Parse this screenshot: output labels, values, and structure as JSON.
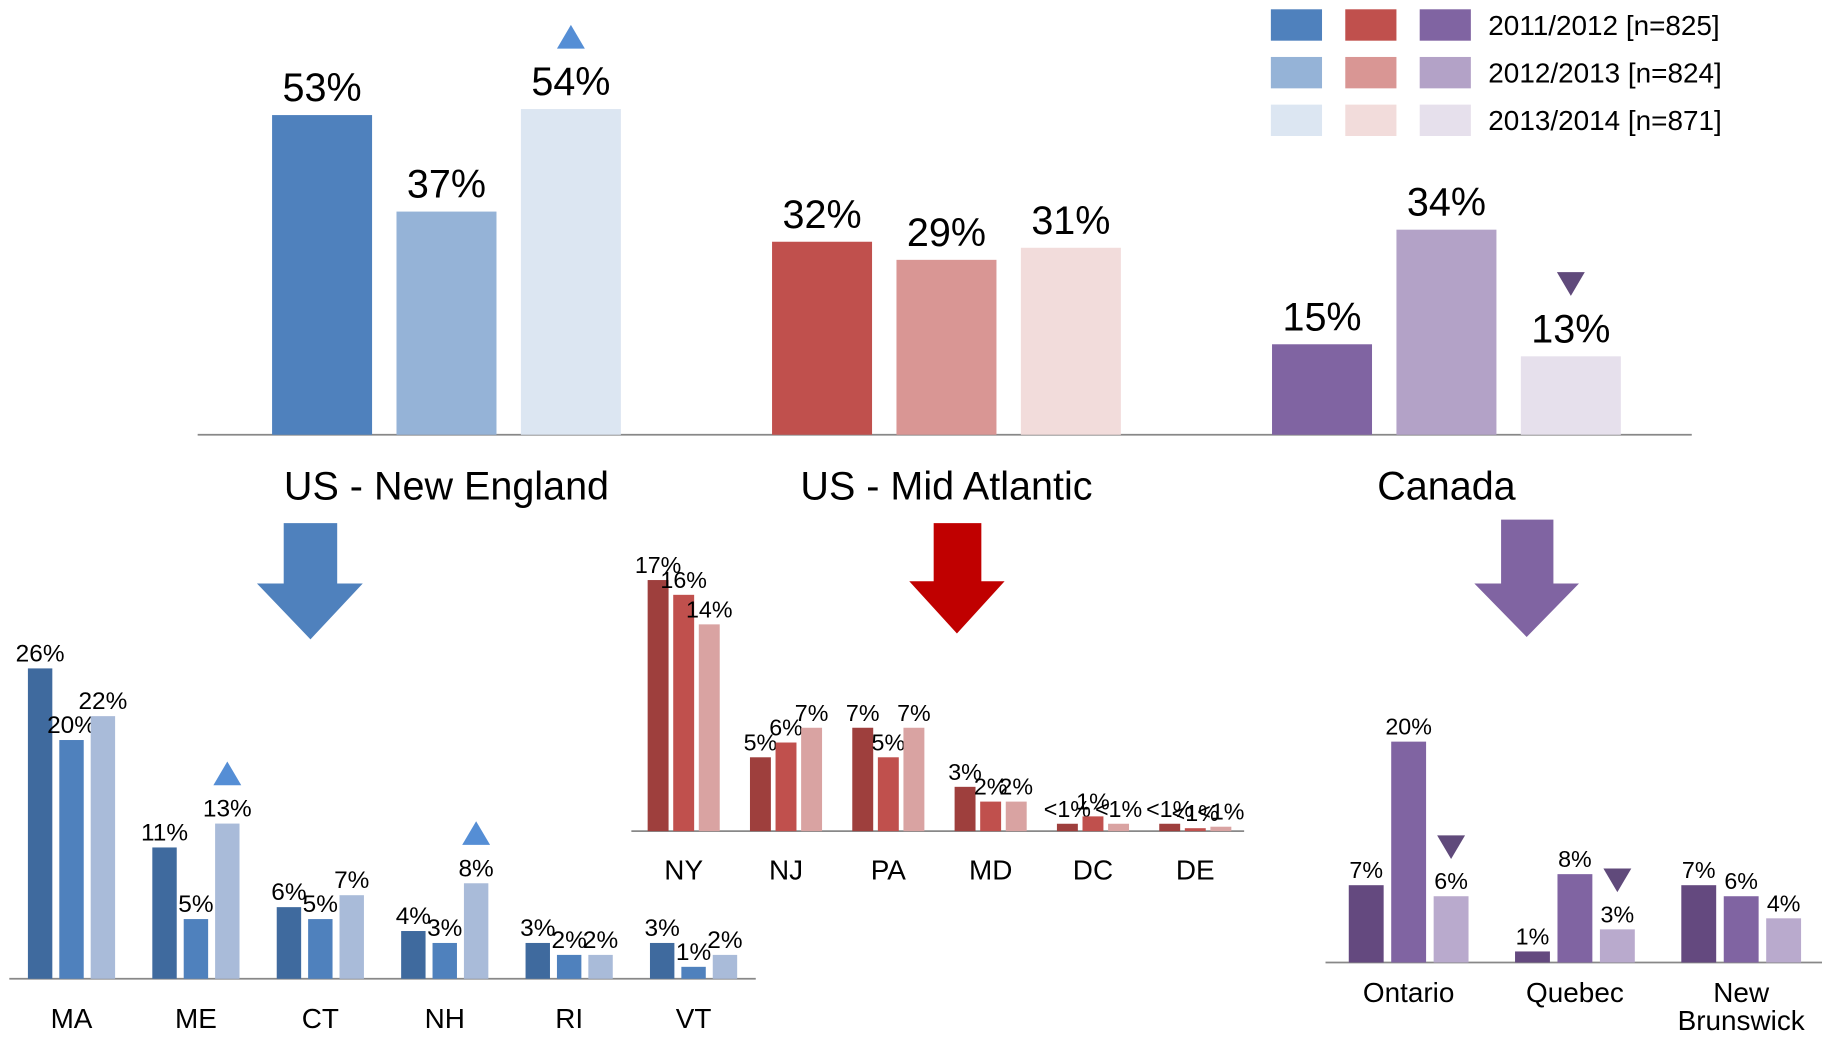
{
  "chart_data": [
    {
      "type": "bar",
      "categories": [
        "US - New England",
        "US - Mid Atlantic",
        "Canada"
      ],
      "series": [
        {
          "name": "2011/2012 [n=825]",
          "colors": [
            "#4f81bd",
            "#c0504d",
            "#8064a2"
          ],
          "values": [
            53,
            32,
            15
          ],
          "value_labels": [
            "53%",
            "32%",
            "15%"
          ]
        },
        {
          "name": "2012/2013 [n=824]",
          "colors": [
            "#95b3d7",
            "#d99694",
            "#b3a2c7"
          ],
          "values": [
            37,
            29,
            34
          ],
          "value_labels": [
            "37%",
            "29%",
            "34%"
          ]
        },
        {
          "name": "2013/2014 [n=871]",
          "colors": [
            "#dce6f2",
            "#f2dcdb",
            "#e6e0ec"
          ],
          "values": [
            54,
            31,
            13
          ],
          "value_labels": [
            "54%",
            "31%",
            "13%"
          ]
        }
      ],
      "markers": [
        {
          "series": 2,
          "category": 0,
          "direction": "up",
          "color": "#558ed5"
        },
        {
          "series": 2,
          "category": 2,
          "direction": "down",
          "color": "#604a7b"
        }
      ]
    },
    {
      "type": "bar",
      "categories": [
        "MA",
        "ME",
        "CT",
        "NH",
        "RI",
        "VT"
      ],
      "series": [
        {
          "color": "#3f6a9e",
          "values": [
            26,
            11,
            6,
            4,
            3,
            3
          ],
          "value_labels": [
            "26%",
            "11%",
            "6%",
            "4%",
            "3%",
            "3%"
          ]
        },
        {
          "color": "#4f81bd",
          "values": [
            20,
            5,
            5,
            3,
            2,
            1
          ],
          "value_labels": [
            "20%",
            "5%",
            "5%",
            "3%",
            "2%",
            "1%"
          ]
        },
        {
          "color": "#a9bbd9",
          "values": [
            22,
            13,
            7,
            8,
            2,
            2
          ],
          "value_labels": [
            "22%",
            "13%",
            "7%",
            "8%",
            "2%",
            "2%"
          ]
        }
      ],
      "markers": [
        {
          "series": 2,
          "category": 1,
          "direction": "up",
          "color": "#558ed5"
        },
        {
          "series": 2,
          "category": 3,
          "direction": "up",
          "color": "#558ed5"
        }
      ]
    },
    {
      "type": "bar",
      "categories": [
        "NY",
        "NJ",
        "PA",
        "MD",
        "DC",
        "DE"
      ],
      "series": [
        {
          "color": "#9e3f3d",
          "values": [
            17,
            5,
            7,
            3,
            0.5,
            0.5
          ],
          "value_labels": [
            "17%",
            "5%",
            "7%",
            "3%",
            "<1%",
            "<1%"
          ]
        },
        {
          "color": "#c0504d",
          "values": [
            16,
            6,
            5,
            2,
            1,
            0.2
          ],
          "value_labels": [
            "16%",
            "6%",
            "5%",
            "2%",
            "1%",
            "<1%"
          ]
        },
        {
          "color": "#d9a3a2",
          "values": [
            14,
            7,
            7,
            2,
            0.5,
            0.3
          ],
          "value_labels": [
            "14%",
            "7%",
            "7%",
            "2%",
            "<1%",
            "<1%"
          ]
        }
      ],
      "markers": []
    },
    {
      "type": "bar",
      "categories": [
        "Ontario",
        "Quebec",
        "New Brunswick"
      ],
      "series": [
        {
          "color": "#64497f",
          "values": [
            7,
            1,
            7
          ],
          "value_labels": [
            "7%",
            "1%",
            "7%"
          ]
        },
        {
          "color": "#8064a2",
          "values": [
            20,
            8,
            6
          ],
          "value_labels": [
            "20%",
            "8%",
            "6%"
          ]
        },
        {
          "color": "#b9aacd",
          "values": [
            6,
            3,
            4
          ],
          "value_labels": [
            "6%",
            "3%",
            "4%"
          ]
        }
      ],
      "markers": [
        {
          "series": 2,
          "category": 0,
          "direction": "down",
          "color": "#604a7b"
        },
        {
          "series": 2,
          "category": 1,
          "direction": "down",
          "color": "#604a7b"
        }
      ]
    }
  ]
}
